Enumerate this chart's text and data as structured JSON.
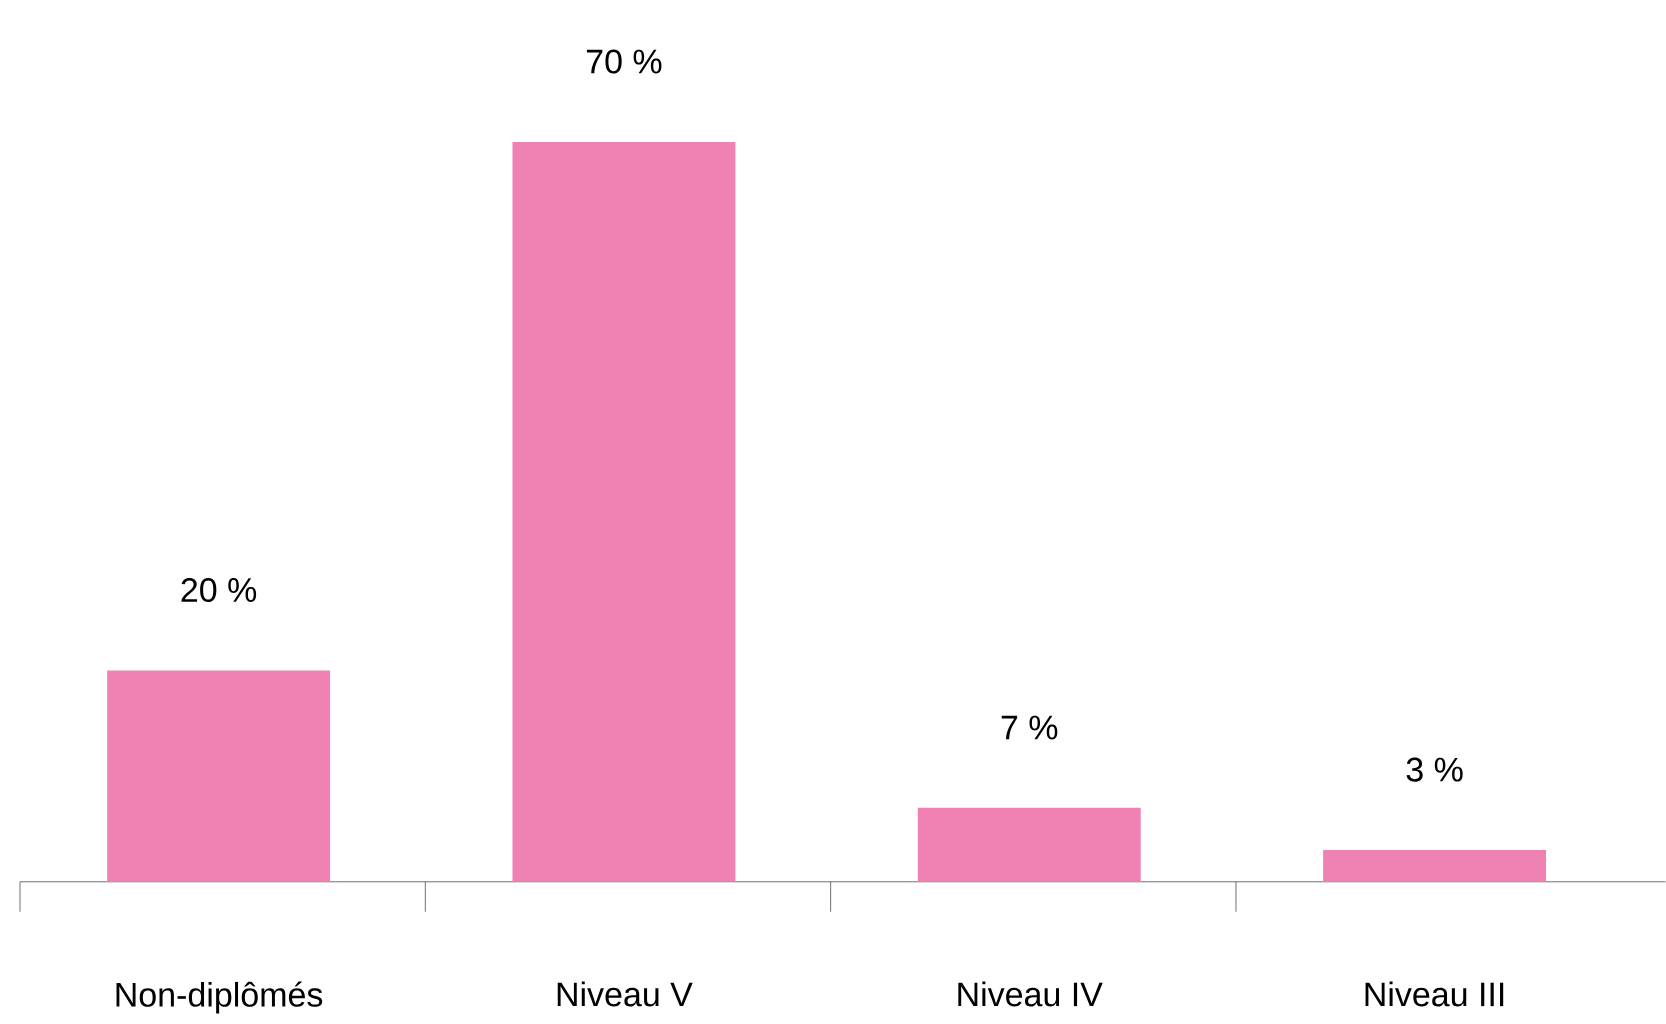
{
  "chart_data": {
    "type": "bar",
    "categories": [
      "Non-diplômés",
      "Niveau V",
      "Niveau IV",
      "Niveau III"
    ],
    "values": [
      20,
      70,
      7,
      3
    ],
    "value_labels": [
      "20 %",
      "70 %",
      "7 %",
      "3 %"
    ],
    "color": "#ef82b2"
  }
}
